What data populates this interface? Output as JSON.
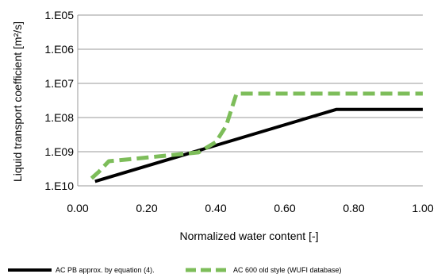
{
  "chart_data": {
    "type": "line",
    "title": "",
    "xlabel": "Normalized water content  [-]",
    "ylabel": "Liquid transport coefficient [m²/s]",
    "xlim": [
      0,
      1
    ],
    "ylim": [
      -10,
      -5
    ],
    "y_scale": "log",
    "grid": "horizontal",
    "x_ticks": [
      0,
      0.2,
      0.4,
      0.6,
      0.8,
      1.0
    ],
    "x_tick_labels": [
      "0.00",
      "0.20",
      "0.40",
      "0.60",
      "0.80",
      "1.00"
    ],
    "y_ticks": [
      -5,
      -6,
      -7,
      -8,
      -9,
      -10
    ],
    "y_tick_labels": [
      "1.E05",
      "1.E06",
      "1.E07",
      "1.E08",
      "1.E09",
      "1.E10"
    ],
    "legend_position": "bottom",
    "series": [
      {
        "name": "AC PB approx. by equation (4).",
        "color": "#000000",
        "style": "solid",
        "x": [
          0.05,
          0.75,
          1.0
        ],
        "y": [
          -9.87,
          -7.76,
          -7.76
        ]
      },
      {
        "name": "AC 600 old style (WUFI database)",
        "color": "#7dbd5a",
        "style": "dashed",
        "x": [
          0.04,
          0.06,
          0.09,
          0.15,
          0.25,
          0.35,
          0.4,
          0.43,
          0.46,
          0.5,
          0.6,
          0.75,
          1.0
        ],
        "y": [
          -9.78,
          -9.6,
          -9.28,
          -9.22,
          -9.12,
          -9.02,
          -8.72,
          -8.25,
          -7.3,
          -7.3,
          -7.3,
          -7.3,
          -7.3
        ]
      }
    ]
  }
}
